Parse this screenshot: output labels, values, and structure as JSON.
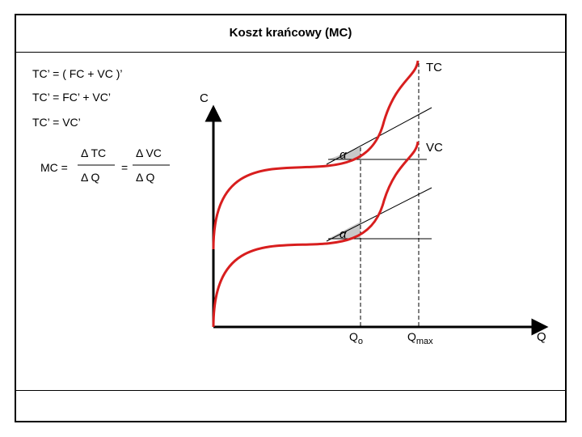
{
  "slide": {
    "title": "Koszt  krańcowy  (MC)",
    "equations": {
      "line1": "TC’ = ( FC + VC )’",
      "line2": "TC’ =  FC’ + VC’",
      "line3": "TC’ =  VC’",
      "mc_label": "MC =",
      "frac1_num": "Δ TC",
      "frac1_den": "Δ Q",
      "equals": "=",
      "frac2_num": "Δ VC",
      "frac2_den": "Δ Q"
    },
    "diagram": {
      "y_axis_label": "C",
      "x_axis_label": "Q",
      "tc_label": "TC",
      "vc_label": "VC",
      "alpha_symbol": "α",
      "q0_main": "Q",
      "q0_sub": "o",
      "qmax_main": "Q",
      "qmax_sub": "max",
      "curve_color": "#d81e1e",
      "axis_color": "#000000",
      "alpha_fill": "#c8c8c8"
    }
  }
}
